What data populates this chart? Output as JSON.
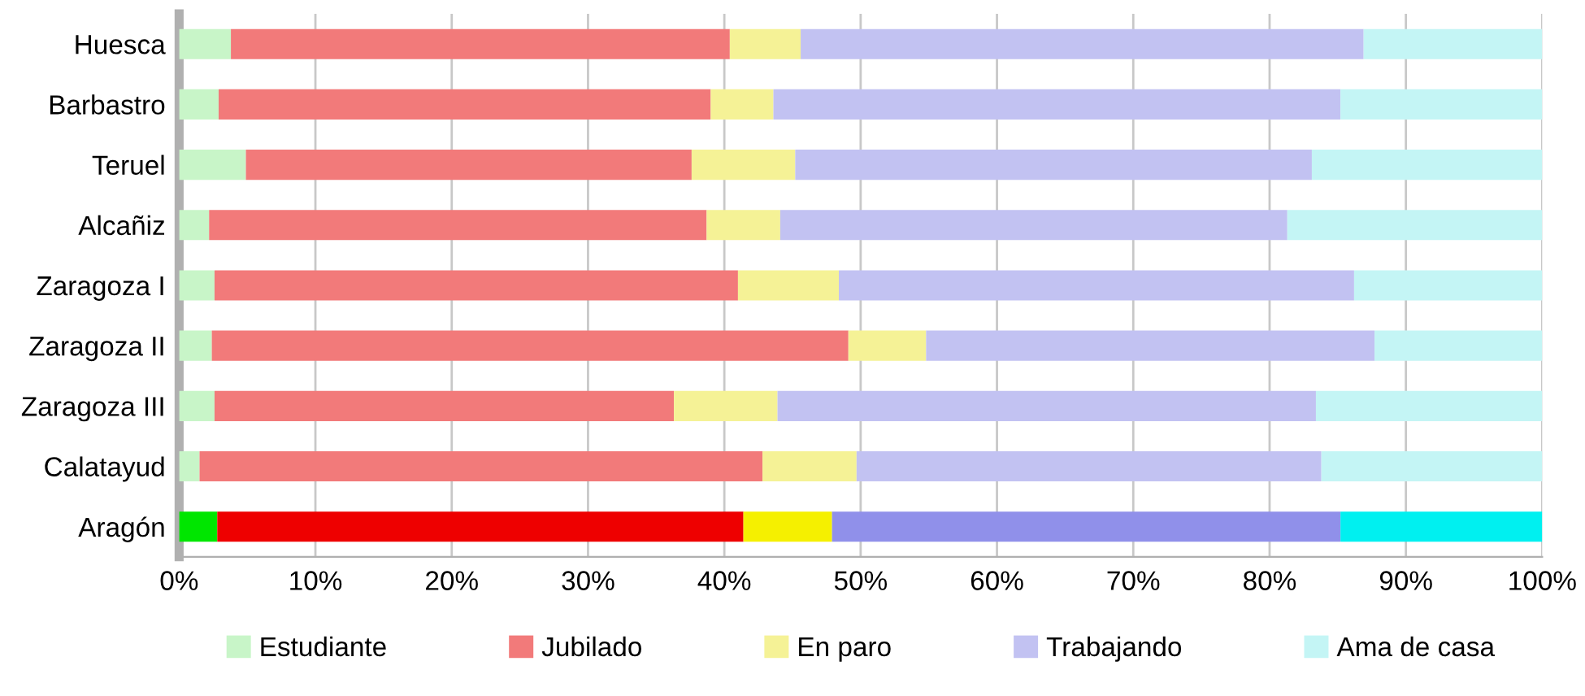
{
  "chart_data": {
    "type": "bar",
    "orientation": "horizontal",
    "stacked": true,
    "categories": [
      "Huesca",
      "Barbastro",
      "Teruel",
      "Alcañiz",
      "Zaragoza I",
      "Zaragoza II",
      "Zaragoza III",
      "Calatayud",
      "Aragón"
    ],
    "series": [
      {
        "name": "Estudiante",
        "color": "#c8f5c8",
        "colors": [
          "#c8f5c8",
          "#c8f5c8",
          "#c8f5c8",
          "#c8f5c8",
          "#c8f5c8",
          "#c8f5c8",
          "#c8f5c8",
          "#c8f5c8",
          "#00e600"
        ],
        "values": [
          3.8,
          2.9,
          4.9,
          2.2,
          2.6,
          2.4,
          2.6,
          1.5,
          2.8
        ]
      },
      {
        "name": "Jubilado",
        "color": "#f27a7a",
        "colors": [
          "#f27a7a",
          "#f27a7a",
          "#f27a7a",
          "#f27a7a",
          "#f27a7a",
          "#f27a7a",
          "#f27a7a",
          "#f27a7a",
          "#ee0000"
        ],
        "values": [
          36.6,
          36.1,
          32.7,
          36.5,
          38.4,
          46.7,
          33.7,
          41.3,
          38.6
        ]
      },
      {
        "name": "En paro",
        "color": "#f5f296",
        "colors": [
          "#f5f296",
          "#f5f296",
          "#f5f296",
          "#f5f296",
          "#f5f296",
          "#f5f296",
          "#f5f296",
          "#f5f296",
          "#f5f000"
        ],
        "values": [
          5.2,
          4.6,
          7.6,
          5.4,
          7.4,
          5.7,
          7.6,
          6.9,
          6.5
        ]
      },
      {
        "name": "Trabajando",
        "color": "#c2c2f2",
        "colors": [
          "#c2c2f2",
          "#c2c2f2",
          "#c2c2f2",
          "#c2c2f2",
          "#c2c2f2",
          "#c2c2f2",
          "#c2c2f2",
          "#c2c2f2",
          "#9090ea"
        ],
        "values": [
          41.3,
          41.6,
          37.9,
          37.2,
          37.8,
          32.9,
          39.5,
          34.1,
          37.3
        ]
      },
      {
        "name": "Ama de casa",
        "color": "#c4f5f5",
        "colors": [
          "#c4f5f5",
          "#c4f5f5",
          "#c4f5f5",
          "#c4f5f5",
          "#c4f5f5",
          "#c4f5f5",
          "#c4f5f5",
          "#c4f5f5",
          "#00f0f0"
        ],
        "values": [
          13.1,
          14.8,
          16.9,
          18.7,
          13.8,
          12.3,
          16.6,
          16.2,
          14.8
        ]
      }
    ],
    "xlim": [
      0,
      100
    ],
    "xticks": [
      {
        "value": 0,
        "label": "0%"
      },
      {
        "value": 10,
        "label": "10%"
      },
      {
        "value": 20,
        "label": "20%"
      },
      {
        "value": 30,
        "label": "30%"
      },
      {
        "value": 40,
        "label": "40%"
      },
      {
        "value": 50,
        "label": "50%"
      },
      {
        "value": 60,
        "label": "60%"
      },
      {
        "value": 70,
        "label": "70%"
      },
      {
        "value": 80,
        "label": "80%"
      },
      {
        "value": 90,
        "label": "90%"
      },
      {
        "value": 100,
        "label": "100%"
      }
    ],
    "grid": "x",
    "legend": "bottom"
  }
}
